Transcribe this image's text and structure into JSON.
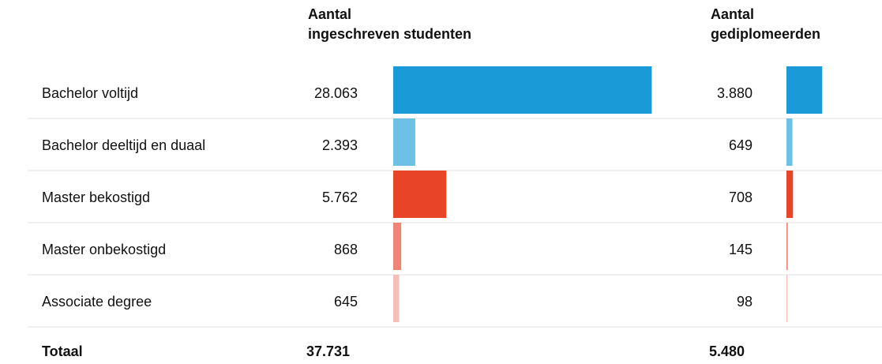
{
  "chart_data": {
    "type": "bar",
    "categories": [
      "Bachelor voltijd",
      "Bachelor deeltijd en duaal",
      "Master bekostigd",
      "Master onbekostigd",
      "Associate degree"
    ],
    "colors": [
      "#1a9ad6",
      "#6dc0e6",
      "#e84427",
      "#ee8577",
      "#f4bfb8"
    ],
    "series": [
      {
        "name": "Aantal\ningeschreven studenten",
        "values": [
          28063,
          2393,
          5762,
          868,
          645
        ],
        "value_labels": [
          "28.063",
          "2.393",
          "5.762",
          "868",
          "645"
        ]
      },
      {
        "name": "Aantal\ngediplomeerden",
        "values": [
          3880,
          649,
          708,
          145,
          98
        ],
        "value_labels": [
          "3.880",
          "649",
          "708",
          "145",
          "98"
        ]
      }
    ],
    "total_label": "Totaal",
    "totals": [
      37731,
      5480
    ],
    "total_labels": [
      "37.731",
      "5.480"
    ]
  }
}
